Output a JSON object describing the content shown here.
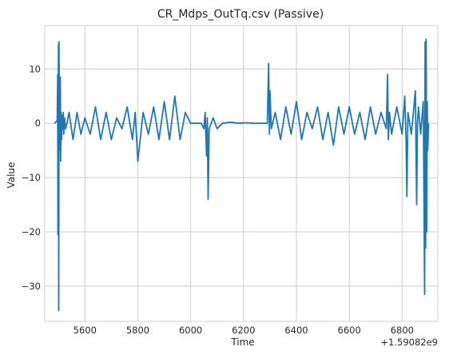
{
  "chart_data": {
    "type": "line",
    "title": "CR_Mdps_OutTq.csv (Passive)",
    "xlabel": "Time",
    "ylabel": "Value",
    "x_offset_label": "+1.59082e9",
    "xlim": [
      5448,
      6935
    ],
    "ylim": [
      -36.5,
      18
    ],
    "x_ticks": [
      5600,
      5800,
      6000,
      6200,
      6400,
      6600,
      6800
    ],
    "y_ticks": [
      -30,
      -20,
      -10,
      0,
      10
    ],
    "grid": true,
    "series": [
      {
        "color": "#1f77b4",
        "x": [
          5485,
          5495,
          5497,
          5498,
          5499,
          5500,
          5501,
          5502,
          5503,
          5504,
          5505,
          5506,
          5507,
          5508,
          5510,
          5512,
          5514,
          5516,
          5518,
          5520,
          5523,
          5527,
          5532,
          5540,
          5555,
          5570,
          5585,
          5600,
          5620,
          5640,
          5660,
          5680,
          5700,
          5720,
          5740,
          5760,
          5780,
          5790,
          5800,
          5820,
          5840,
          5860,
          5880,
          5900,
          5920,
          5940,
          5960,
          5980,
          6000,
          6020,
          6040,
          6050,
          6055,
          6060,
          6063,
          6066,
          6070,
          6085,
          6100,
          6120,
          6150,
          6180,
          6210,
          6240,
          6270,
          6290,
          6295,
          6298,
          6300,
          6305,
          6320,
          6340,
          6360,
          6380,
          6400,
          6420,
          6440,
          6460,
          6480,
          6500,
          6520,
          6540,
          6560,
          6580,
          6600,
          6620,
          6640,
          6660,
          6680,
          6700,
          6720,
          6740,
          6745,
          6748,
          6752,
          6760,
          6780,
          6800,
          6810,
          6815,
          6818,
          6822,
          6835,
          6850,
          6855,
          6858,
          6862,
          6870,
          6880,
          6885,
          6887,
          6889,
          6891,
          6893,
          6895,
          6897,
          6900
        ],
        "y": [
          0,
          0.5,
          9,
          -20.5,
          4,
          14.5,
          -34.5,
          15,
          -5,
          3,
          1,
          -2,
          8.5,
          -7,
          2,
          -3,
          1.5,
          -1,
          2,
          -2,
          1,
          -1,
          0,
          2,
          -3,
          2,
          -2,
          1,
          -2,
          3,
          -3,
          2,
          -3,
          1,
          -1,
          3,
          -3,
          2,
          -7,
          2,
          -2,
          3,
          -3,
          4,
          -3,
          5,
          -3,
          2,
          0,
          0,
          0,
          -1,
          2,
          -6,
          1,
          -14,
          -1,
          1,
          -1,
          0,
          0.2,
          0,
          0.1,
          0,
          0,
          0,
          11,
          -2,
          6,
          -1,
          2,
          -3,
          3,
          -2,
          4,
          -3,
          2,
          -1,
          3,
          -3,
          2,
          -4,
          3,
          -2,
          3,
          -2,
          2,
          -3,
          3,
          -2,
          2,
          -1,
          9,
          -3,
          2,
          -2,
          3,
          -2,
          5,
          -3,
          -13.5,
          2,
          -2,
          6,
          -15,
          0,
          3,
          -2,
          4,
          -31.5,
          15,
          -23,
          15.5,
          -20,
          4,
          -5,
          0
        ]
      }
    ]
  }
}
